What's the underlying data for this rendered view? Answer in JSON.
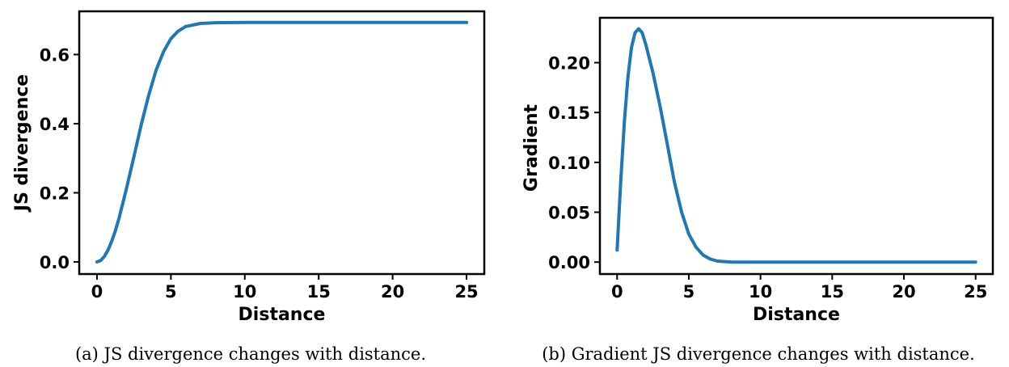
{
  "chart_data": [
    {
      "type": "line",
      "x_label": "Distance",
      "y_label": "JS divergence",
      "caption": "(a) JS divergence changes with distance.",
      "xlim": [
        -1.2,
        26.2
      ],
      "ylim": [
        -0.035,
        0.725
      ],
      "x_ticks": [
        0,
        5,
        10,
        15,
        20,
        25
      ],
      "y_ticks": [
        0.0,
        0.2,
        0.4,
        0.6
      ],
      "x_tick_labels": [
        "0",
        "5",
        "10",
        "15",
        "20",
        "25"
      ],
      "y_tick_labels": [
        "0.0",
        "0.2",
        "0.4",
        "0.6"
      ],
      "grid": false,
      "series": [
        {
          "color": "#1f77b4",
          "x": [
            0,
            0.25,
            0.5,
            0.75,
            1,
            1.25,
            1.5,
            2,
            2.5,
            3,
            3.5,
            4,
            4.5,
            5,
            5.5,
            6,
            7,
            8,
            10,
            15,
            20,
            25
          ],
          "y": [
            0,
            0.004,
            0.016,
            0.035,
            0.06,
            0.091,
            0.128,
            0.213,
            0.305,
            0.398,
            0.482,
            0.555,
            0.608,
            0.646,
            0.668,
            0.681,
            0.69,
            0.692,
            0.693,
            0.693,
            0.693,
            0.693
          ]
        }
      ]
    },
    {
      "type": "line",
      "x_label": "Distance",
      "y_label": "Gradient",
      "caption": "(b) Gradient JS divergence changes with distance.",
      "xlim": [
        -1.2,
        26.2
      ],
      "ylim": [
        -0.012,
        0.245
      ],
      "x_ticks": [
        0,
        5,
        10,
        15,
        20,
        25
      ],
      "y_ticks": [
        0.0,
        0.05,
        0.1,
        0.15,
        0.2
      ],
      "x_tick_labels": [
        "0",
        "5",
        "10",
        "15",
        "20",
        "25"
      ],
      "y_tick_labels": [
        "0.00",
        "0.05",
        "0.10",
        "0.15",
        "0.20"
      ],
      "grid": false,
      "series": [
        {
          "color": "#1f77b4",
          "x": [
            0,
            0.25,
            0.5,
            0.75,
            1,
            1.25,
            1.5,
            1.75,
            2,
            2.5,
            3,
            3.5,
            4,
            4.5,
            5,
            5.5,
            6,
            6.5,
            7,
            8,
            10,
            15,
            20,
            25
          ],
          "y": [
            0.012,
            0.08,
            0.14,
            0.185,
            0.215,
            0.23,
            0.234,
            0.23,
            0.218,
            0.19,
            0.156,
            0.118,
            0.08,
            0.05,
            0.028,
            0.015,
            0.007,
            0.003,
            0.001,
            0,
            0,
            0,
            0,
            0
          ]
        }
      ]
    }
  ]
}
